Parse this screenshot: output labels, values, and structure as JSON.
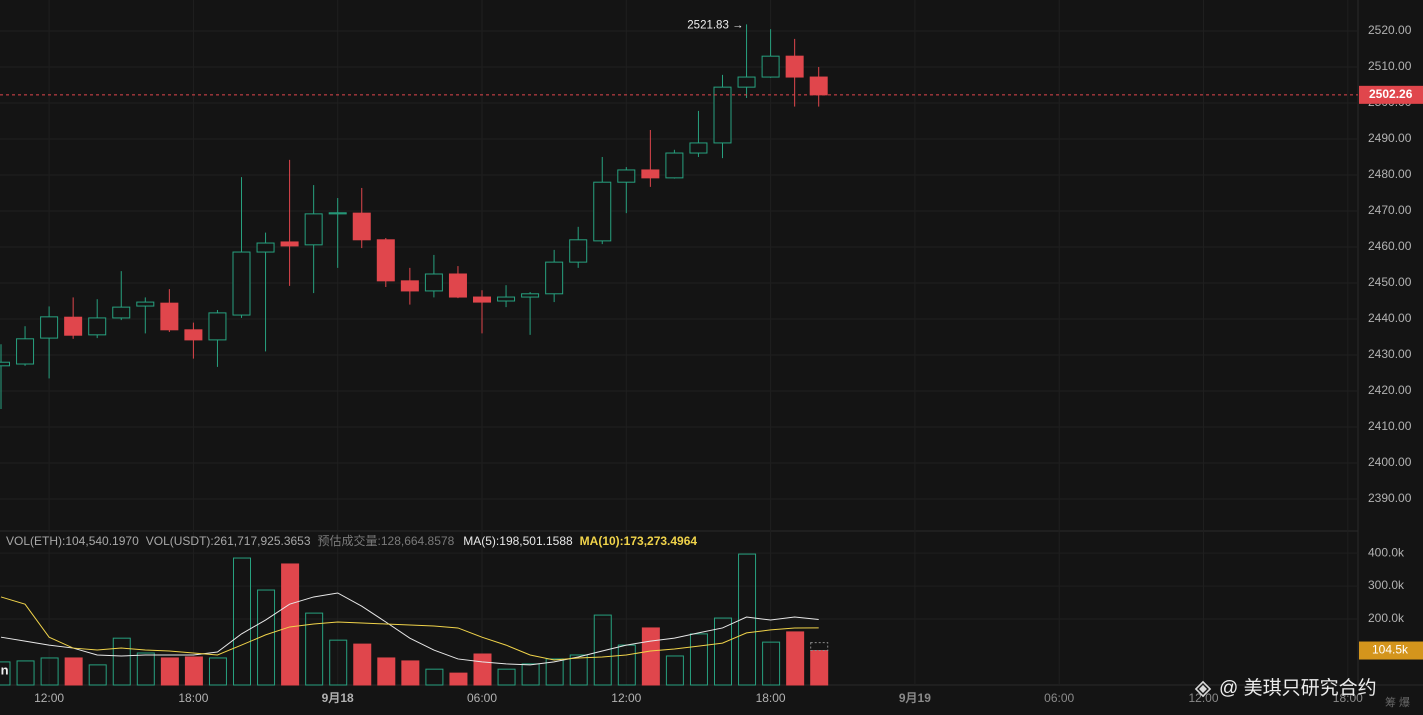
{
  "chart_data": {
    "type": "candlestick",
    "categories": [
      null,
      null,
      "12:00",
      null,
      null,
      null,
      null,
      null,
      "18:00",
      null,
      null,
      null,
      null,
      null,
      "9月18",
      null,
      null,
      null,
      null,
      null,
      "06:00",
      null,
      null,
      null,
      null,
      null,
      "12:00",
      null,
      null,
      null,
      null,
      null,
      "18:00",
      null,
      null,
      null,
      null,
      null,
      "9月19",
      null,
      null,
      null,
      null,
      null,
      "06:00",
      null,
      null,
      null,
      null,
      null,
      "12:00",
      null,
      null,
      null,
      null,
      null,
      "18:00"
    ],
    "open": [
      2427,
      2427.5,
      2434.7,
      2440.5,
      2435.6,
      2440.3,
      2443.6,
      2444.4,
      2437,
      2434.2,
      2441.1,
      2458.6,
      2461.4,
      2460.6,
      2469.2,
      2469.4,
      2462,
      2450.6,
      2447.8,
      2452.5,
      2446.1,
      2445,
      2446.1,
      2447,
      2455.8,
      2461.7,
      2478,
      2481.4,
      2479.2,
      2486.1,
      2488.9,
      2504.4,
      2507.2,
      2513,
      2507.2,
      null,
      null,
      null,
      null,
      null,
      null,
      null,
      null,
      null,
      null,
      null,
      null,
      null,
      null,
      null,
      null,
      null,
      null,
      null,
      null,
      null,
      null
    ],
    "high": [
      2433,
      2438,
      2443.5,
      2446,
      2445.5,
      2453.3,
      2446,
      2448.3,
      2439,
      2442.5,
      2479.4,
      2464,
      2484.2,
      2477.2,
      2473.6,
      2476.4,
      2462.5,
      2454.2,
      2457.8,
      2454.7,
      2448,
      2449.4,
      2447.5,
      2459.2,
      2465.6,
      2485,
      2482.2,
      2492.5,
      2487,
      2497.8,
      2507.8,
      2521.83,
      2520.5,
      2517.8,
      2510,
      null,
      null,
      null,
      null,
      null,
      null,
      null,
      null,
      null,
      null,
      null,
      null,
      null,
      null,
      null,
      null,
      null,
      null,
      null,
      null,
      null,
      null
    ],
    "low": [
      2415,
      2427,
      2423.5,
      2434.5,
      2434.7,
      2439.7,
      2436,
      2436.4,
      2429,
      2426.7,
      2440.3,
      2431,
      2449.2,
      2447.2,
      2454.2,
      2459.7,
      2448.9,
      2444,
      2446,
      2445.8,
      2436,
      2443.3,
      2435.6,
      2444.7,
      2454.2,
      2460.8,
      2469.4,
      2476.7,
      2479,
      2485,
      2484.7,
      2501.4,
      2507,
      2499,
      2499,
      null,
      null,
      null,
      null,
      null,
      null,
      null,
      null,
      null,
      null,
      null,
      null,
      null,
      null,
      null,
      null,
      null,
      null,
      null,
      null,
      null,
      null
    ],
    "close": [
      2428,
      2434.5,
      2440.6,
      2435.5,
      2440.3,
      2443.3,
      2444.7,
      2437,
      2434.2,
      2441.7,
      2458.6,
      2461.1,
      2460.3,
      2469.2,
      2469.5,
      2462,
      2450.6,
      2447.8,
      2452.5,
      2446.1,
      2444.7,
      2446.1,
      2447,
      2455.8,
      2462,
      2478,
      2481.4,
      2479.2,
      2486.1,
      2488.9,
      2504.4,
      2507.2,
      2513,
      2507.2,
      2502.26,
      null,
      null,
      null,
      null,
      null,
      null,
      null,
      null,
      null,
      null,
      null,
      null,
      null,
      null,
      null,
      null,
      null,
      null,
      null,
      null,
      null,
      null
    ],
    "up_color": "#27a17f",
    "down_color": "#e0464c",
    "high_annotation": "2521.83 →",
    "ylim": [
      2381.4,
      2528.6
    ],
    "yticks": [
      {
        "value": 2390,
        "label": "2390.00"
      },
      {
        "value": 2400,
        "label": "2400.00"
      },
      {
        "value": 2410,
        "label": "2410.00"
      },
      {
        "value": 2420,
        "label": "2420.00"
      },
      {
        "value": 2430,
        "label": "2430.00"
      },
      {
        "value": 2440,
        "label": "2440.00"
      },
      {
        "value": 2450,
        "label": "2450.00"
      },
      {
        "value": 2460,
        "label": "2460.00"
      },
      {
        "value": 2470,
        "label": "2470.00"
      },
      {
        "value": 2480,
        "label": "2480.00"
      },
      {
        "value": 2490,
        "label": "2490.00"
      },
      {
        "value": 2500,
        "label": "2500.00"
      },
      {
        "value": 2510,
        "label": "2510.00"
      },
      {
        "value": 2520,
        "label": "2520.00"
      }
    ],
    "grid": true,
    "volume": {
      "header": [
        {
          "text": "VOL(ETH):104,540.1970",
          "color": "#a8a8a8"
        },
        {
          "text": "VOL(USDT):261,717,925.3653",
          "color": "#a8a8a8"
        },
        {
          "text": "预估成交量:128,664.8578",
          "color": "#7a7a7a"
        }
      ],
      "predicted": 128664.8578,
      "values": [
        70000,
        73000,
        82000,
        82000,
        61000,
        142000,
        97000,
        82000,
        85000,
        82000,
        385000,
        288000,
        367000,
        218000,
        136000,
        124000,
        82000,
        73000,
        48000,
        36000,
        94000,
        48000,
        64000,
        79000,
        91000,
        212000,
        121000,
        173000,
        88000,
        155000,
        203000,
        397000,
        130000,
        161000,
        104540.197,
        null,
        null,
        null,
        null,
        null,
        null,
        null,
        null,
        null,
        null,
        null,
        null,
        null,
        null,
        null,
        null,
        null,
        null,
        null,
        null,
        null,
        null
      ],
      "value_labels": [
        null,
        null,
        null,
        null,
        null,
        null,
        null,
        null,
        null,
        null,
        null,
        null,
        null,
        null,
        null,
        null,
        null,
        null,
        null,
        null,
        null,
        null,
        null,
        null,
        null,
        null,
        null,
        null,
        null,
        null,
        null,
        null,
        null,
        null,
        "104.5k",
        null,
        null,
        null,
        null,
        null,
        null,
        null,
        null,
        null,
        null,
        null,
        null,
        null,
        null,
        null,
        null,
        null,
        null,
        null,
        null,
        null,
        null
      ],
      "label_color": "#d4951c",
      "ylim": [
        0,
        470000
      ],
      "yticks": [
        {
          "value": 200000,
          "label": "200.0k"
        },
        {
          "value": 300000,
          "label": "300.0k"
        },
        {
          "value": 400000,
          "label": "400.0k"
        }
      ],
      "ma": [
        {
          "label": "MA(5):198,501.1588",
          "color": "#e8e8e8",
          "values": [
            145000,
            133000,
            121000,
            112000,
            91000,
            88000,
            91000,
            91000,
            91000,
            100000,
            155000,
            197000,
            245000,
            267000,
            279000,
            239000,
            191000,
            142000,
            106000,
            79000,
            70000,
            64000,
            61000,
            70000,
            85000,
            103000,
            121000,
            133000,
            142000,
            158000,
            173000,
            206000,
            197000,
            206000,
            198501.1588,
            null,
            null,
            null,
            null,
            null,
            null,
            null,
            null,
            null,
            null,
            null,
            null,
            null,
            null,
            null,
            null,
            null,
            null,
            null,
            null,
            null,
            null
          ]
        },
        {
          "label": "MA(10):173,273.4964",
          "color": "#f0d34a",
          "values": [
            267000,
            245000,
            145000,
            112000,
            106000,
            112000,
            106000,
            103000,
            97000,
            91000,
            121000,
            152000,
            176000,
            185000,
            191000,
            188000,
            185000,
            182000,
            179000,
            173000,
            145000,
            121000,
            91000,
            76000,
            82000,
            85000,
            91000,
            103000,
            109000,
            118000,
            127000,
            158000,
            167000,
            173000,
            173273.4964,
            null,
            null,
            null,
            null,
            null,
            null,
            null,
            null,
            null,
            null,
            null,
            null,
            null,
            null,
            null,
            null,
            null,
            null,
            null,
            null,
            null,
            null
          ]
        }
      ]
    }
  },
  "edge_label": "in",
  "watermark": "@ 美琪只研究合约",
  "corner_text": "筹 爆"
}
